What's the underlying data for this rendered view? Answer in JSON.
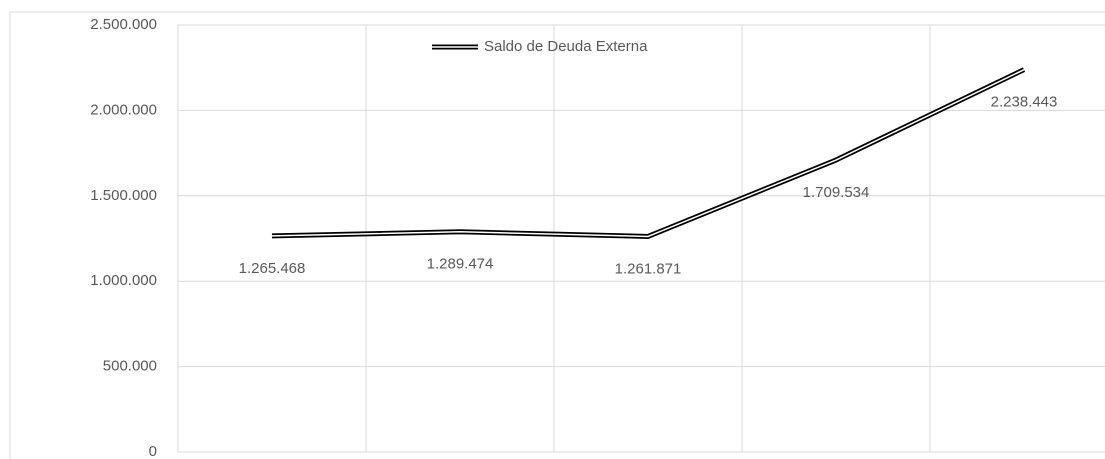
{
  "chart_data": {
    "type": "line",
    "categories": [
      null,
      null,
      null,
      null,
      null
    ],
    "series": [
      {
        "name": "Saldo de Deuda Externa",
        "color": "#000000",
        "values": [
          1265468,
          1289474,
          1261871,
          1709534,
          2238443
        ],
        "value_labels": [
          "1.265.468",
          "1.289.474",
          "1.261.871",
          "1.709.534",
          "2.238.443"
        ]
      }
    ],
    "ylim": [
      0,
      2500000
    ],
    "yticks": [
      0,
      {
        "value": 500000,
        "label": "500.000"
      },
      {
        "value": 1000000,
        "label": "1.000.000"
      },
      {
        "value": 1500000,
        "label": "1.500.000"
      },
      {
        "value": 2000000,
        "label": "2.000.000"
      },
      {
        "value": 2500000,
        "label": "2.500.000"
      }
    ],
    "grid": true,
    "legend": "top"
  }
}
